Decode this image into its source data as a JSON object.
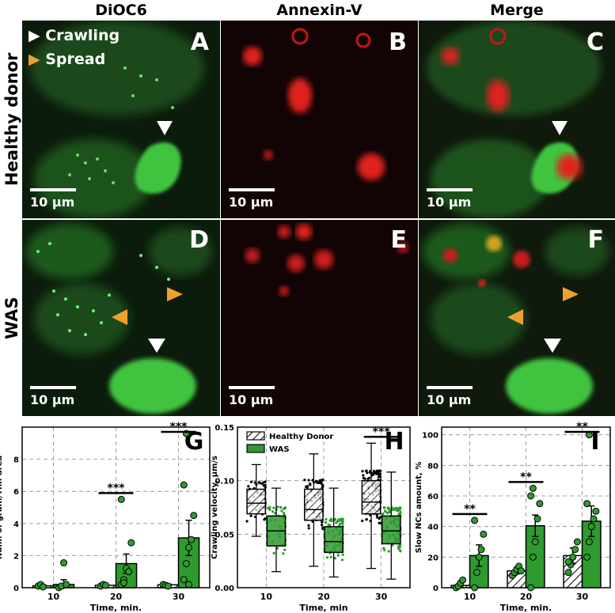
{
  "figure": {
    "column_titles": [
      "DiOC6",
      "Annexin-V",
      "Merge"
    ],
    "row_titles": [
      "Healthy donor",
      "WAS"
    ],
    "panel_letters": [
      "A",
      "B",
      "C",
      "D",
      "E",
      "F"
    ],
    "scale_label": "10 µm",
    "image_legend": {
      "crawling": "Crawling",
      "spread": "Spread"
    },
    "colors": {
      "green": "#2f9a2f",
      "red": "#e0201e",
      "orange": "#f0a030",
      "white_arrow": "#ffffff"
    }
  },
  "chart_data": [
    {
      "type": "bar",
      "panel": "G",
      "categories": [
        "10",
        "20",
        "30"
      ],
      "xlabel": "Time, min.",
      "ylabel": "Num. of gran./Thr. area",
      "ylim": [
        0,
        10
      ],
      "yticks": [
        "0",
        "2",
        "4",
        "6",
        "8"
      ],
      "series": [
        {
          "values": [
            0.12,
            0.15,
            0.18
          ],
          "err": [
            0.05,
            0.05,
            0.05
          ],
          "points": [
            [
              0.1,
              0.2,
              0.05
            ],
            [
              0.1,
              0.2,
              0.15
            ],
            [
              0.2,
              0.15,
              0.1
            ]
          ]
        },
        {
          "values": [
            0.2,
            1.5,
            3.1
          ],
          "err": [
            0.3,
            0.6,
            1.1
          ],
          "points": [
            [
              0.0,
              0.1,
              1.55,
              0.2
            ],
            [
              0.2,
              0.5,
              1.2,
              1.0,
              2.8,
              5.5,
              0.3
            ],
            [
              0.5,
              1.5,
              2.5,
              3.0,
              4.5,
              6.4,
              9.6,
              0.2
            ]
          ]
        }
      ],
      "significance": [
        {
          "category": "20",
          "label": "***"
        },
        {
          "category": "30",
          "label": "***"
        }
      ]
    },
    {
      "type": "box",
      "panel": "H",
      "categories": [
        "10",
        "20",
        "30"
      ],
      "xlabel": "Time, min",
      "ylabel": "Crawling velocity, µm/s",
      "ylim": [
        0,
        0.15
      ],
      "yticks": [
        "0.00",
        "0.05",
        "0.10",
        "0.15"
      ],
      "legend": [
        "Healthy Donor",
        "WAS"
      ],
      "legend_position": "top",
      "series": [
        {
          "name": "Healthy Donor",
          "boxes": [
            {
              "min": 0.048,
              "q1": 0.069,
              "median": 0.079,
              "q3": 0.092,
              "max": 0.115
            },
            {
              "min": 0.02,
              "q1": 0.063,
              "median": 0.073,
              "q3": 0.092,
              "max": 0.125
            },
            {
              "min": 0.018,
              "q1": 0.069,
              "median": 0.08,
              "q3": 0.1,
              "max": 0.135
            }
          ]
        },
        {
          "name": "WAS",
          "boxes": [
            {
              "min": 0.015,
              "q1": 0.039,
              "median": 0.053,
              "q3": 0.067,
              "max": 0.093
            },
            {
              "min": 0.01,
              "q1": 0.033,
              "median": 0.043,
              "q3": 0.057,
              "max": 0.093
            },
            {
              "min": 0.008,
              "q1": 0.041,
              "median": 0.053,
              "q3": 0.067,
              "max": 0.108
            }
          ]
        }
      ],
      "significance": [
        {
          "category": "30",
          "label": "***"
        }
      ]
    },
    {
      "type": "bar",
      "panel": "I",
      "categories": [
        "10",
        "20",
        "30"
      ],
      "xlabel": "Time, min.",
      "ylabel": "Slow NCs amount, %",
      "ylim": [
        0,
        105
      ],
      "yticks": [
        "0",
        "20",
        "40",
        "60",
        "80",
        "100"
      ],
      "series": [
        {
          "values": [
            1.5,
            11,
            21
          ],
          "err": [
            1,
            2,
            5
          ],
          "points": [
            [
              0,
              1,
              3,
              5
            ],
            [
              8,
              10,
              12,
              14,
              11
            ],
            [
              10,
              15,
              20,
              25,
              30,
              17
            ]
          ]
        },
        {
          "values": [
            21,
            40.5,
            43.5
          ],
          "err": [
            7,
            7,
            10
          ],
          "points": [
            [
              0,
              10,
              20,
              25,
              35,
              44
            ],
            [
              0,
              20,
              30,
              45,
              55,
              60,
              65
            ],
            [
              20,
              30,
              40,
              45,
              50,
              55,
              100
            ]
          ]
        }
      ],
      "significance": [
        {
          "category": "10",
          "label": "**"
        },
        {
          "category": "20",
          "label": "**"
        },
        {
          "category": "30",
          "label": "**"
        }
      ]
    }
  ]
}
